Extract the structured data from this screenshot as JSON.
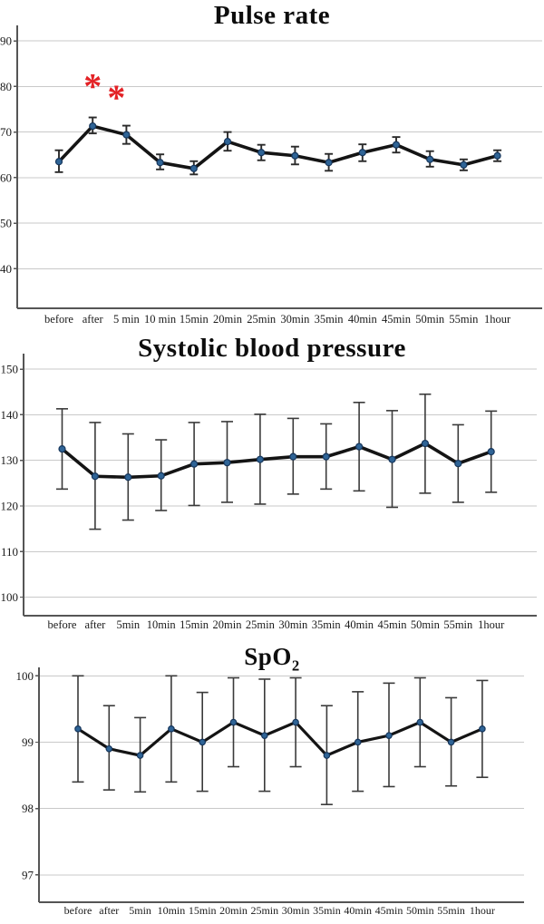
{
  "page": {
    "background": "#ffffff"
  },
  "chart_data": [
    {
      "type": "line",
      "title": "Pulse rate",
      "title_sub": "",
      "xlabel": "",
      "ylabel": "",
      "legend": "none",
      "grid": "horizontal",
      "categories": [
        "before",
        "after",
        "5 min",
        "10 min",
        "15min",
        "20min",
        "25min",
        "30min",
        "35min",
        "40min",
        "45min",
        "50min",
        "55min",
        "1hour"
      ],
      "yticks": [
        40,
        50,
        60,
        70,
        80,
        90
      ],
      "ylim": [
        36,
        93
      ],
      "series": [
        {
          "name": "mean pulse rate",
          "values": [
            63.5,
            71.3,
            69.4,
            63.3,
            62.0,
            67.9,
            65.5,
            64.8,
            63.3,
            65.5,
            67.2,
            64.0,
            62.8,
            64.8
          ],
          "err_low": [
            61.2,
            69.7,
            67.4,
            61.8,
            60.7,
            65.9,
            63.8,
            62.9,
            61.5,
            63.6,
            65.5,
            62.4,
            61.6,
            63.6
          ],
          "err_high": [
            66.0,
            73.2,
            71.4,
            65.1,
            63.6,
            70.0,
            67.2,
            66.8,
            65.2,
            67.3,
            68.9,
            65.8,
            64.0,
            66.0
          ]
        }
      ],
      "annotations": [
        {
          "text": "*",
          "category": "after",
          "value": 81,
          "dx": 0,
          "color": "#e32226"
        },
        {
          "text": "*",
          "category": "5 min",
          "value": 78.5,
          "dx": -11,
          "color": "#e32226"
        }
      ],
      "colors": {
        "line": "#141414",
        "marker_fill": "#2f6496",
        "marker_stroke": "#16365c",
        "error_bar": "#2a2a2a",
        "gridline": "#c9c9c9",
        "axis": "#555555",
        "text": "#1a1a1a"
      }
    },
    {
      "type": "line",
      "title": "Systolic blood pressure",
      "title_sub": "",
      "xlabel": "",
      "ylabel": "",
      "legend": "none",
      "grid": "horizontal",
      "categories": [
        "before",
        "after",
        "5min",
        "10min",
        "15min",
        "20min",
        "25min",
        "30min",
        "35min",
        "40min",
        "45min",
        "50min",
        "55min",
        "1hour"
      ],
      "yticks": [
        100,
        110,
        120,
        130,
        140,
        150
      ],
      "ylim": [
        98,
        153
      ],
      "series": [
        {
          "name": "mean systolic blood pressure",
          "values": [
            132.5,
            126.5,
            126.3,
            126.6,
            129.2,
            129.5,
            130.2,
            130.8,
            130.8,
            133.0,
            130.2,
            133.7,
            129.3,
            131.9
          ],
          "err_low": [
            123.7,
            114.9,
            116.9,
            119.0,
            120.1,
            120.8,
            120.4,
            122.6,
            123.7,
            123.3,
            119.7,
            122.8,
            120.8,
            123.0
          ],
          "err_high": [
            141.3,
            138.3,
            135.8,
            134.5,
            138.3,
            138.5,
            140.1,
            139.2,
            138.0,
            142.7,
            140.9,
            144.5,
            137.8,
            140.8
          ]
        }
      ],
      "annotations": [],
      "colors": {
        "line": "#141414",
        "marker_fill": "#2f6496",
        "marker_stroke": "#16365c",
        "error_bar": "#3a3a3a",
        "gridline": "#c9c9c9",
        "axis": "#555555",
        "text": "#1a1a1a"
      }
    },
    {
      "type": "line",
      "title": "SpO",
      "title_sub": "2",
      "xlabel": "",
      "ylabel": "",
      "legend": "none",
      "grid": "horizontal",
      "categories": [
        "before",
        "after",
        "5min",
        "10min",
        "15min",
        "20min",
        "25min",
        "30min",
        "35min",
        "40min",
        "45min",
        "50min",
        "55min",
        "1hour"
      ],
      "yticks": [
        97,
        98,
        99,
        100
      ],
      "ylim": [
        96.8,
        100.1
      ],
      "series": [
        {
          "name": "mean SpO2",
          "values": [
            99.2,
            98.9,
            98.8,
            99.2,
            99.0,
            99.3,
            99.1,
            99.3,
            98.8,
            99.0,
            99.1,
            99.3,
            99.0,
            99.2
          ],
          "err_low": [
            98.4,
            98.28,
            98.25,
            98.4,
            98.26,
            98.63,
            98.26,
            98.63,
            98.06,
            98.26,
            98.33,
            98.63,
            98.34,
            98.47
          ],
          "err_high": [
            100.0,
            99.55,
            99.37,
            100.0,
            99.75,
            99.97,
            99.95,
            99.97,
            99.55,
            99.76,
            99.89,
            99.97,
            99.67,
            99.93
          ]
        }
      ],
      "annotations": [],
      "colors": {
        "line": "#141414",
        "marker_fill": "#2f6496",
        "marker_stroke": "#16365c",
        "error_bar": "#3a3a3a",
        "gridline": "#c9c9c9",
        "axis": "#555555",
        "text": "#1a1a1a"
      }
    }
  ]
}
